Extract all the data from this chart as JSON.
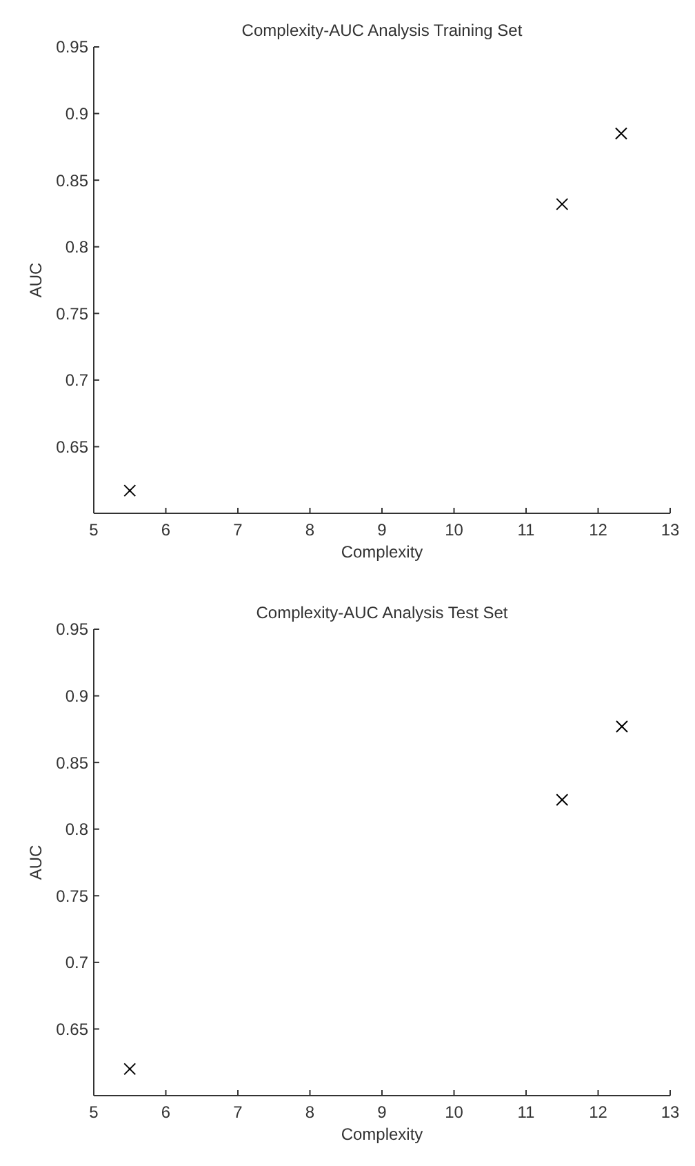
{
  "chart_data": [
    {
      "type": "scatter",
      "title": "Complexity-AUC Analysis Training Set",
      "xlabel": "Complexity",
      "ylabel": "AUC",
      "x": [
        5.5,
        11.5,
        12.32
      ],
      "values": [
        0.617,
        0.832,
        0.885
      ],
      "color": "#000000",
      "marker": "cross",
      "xlim": [
        5,
        13
      ],
      "xticks": [
        5,
        6,
        7,
        8,
        9,
        10,
        11,
        12,
        13
      ],
      "ylim": [
        0.6,
        0.95
      ],
      "yticks": [
        0.65,
        0.7,
        0.75,
        0.8,
        0.85,
        0.9,
        0.95
      ],
      "grid": false
    },
    {
      "type": "scatter",
      "title": "Complexity-AUC Analysis Test Set",
      "xlabel": "Complexity",
      "ylabel": "AUC",
      "x": [
        5.5,
        11.5,
        12.33
      ],
      "values": [
        0.62,
        0.822,
        0.877
      ],
      "color": "#000000",
      "marker": "cross",
      "xlim": [
        5,
        13
      ],
      "xticks": [
        5,
        6,
        7,
        8,
        9,
        10,
        11,
        12,
        13
      ],
      "ylim": [
        0.6,
        0.95
      ],
      "yticks": [
        0.65,
        0.7,
        0.75,
        0.8,
        0.85,
        0.9,
        0.95
      ],
      "grid": false
    }
  ]
}
